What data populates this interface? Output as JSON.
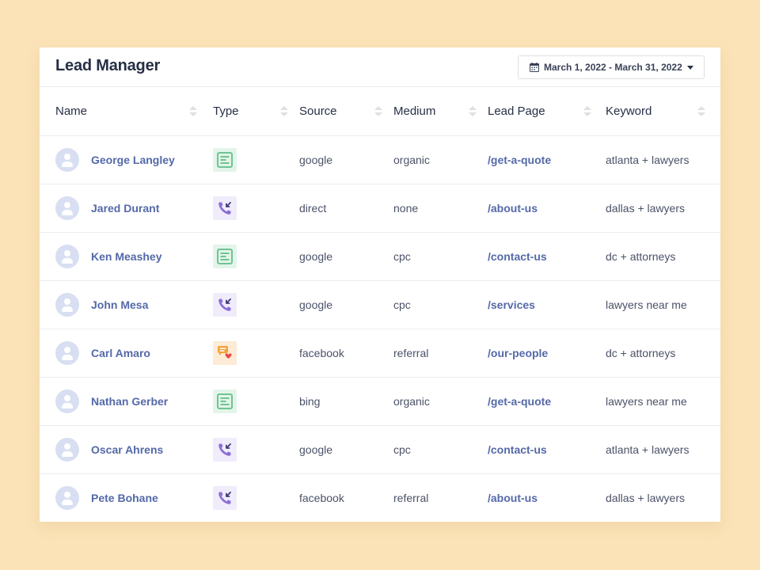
{
  "header": {
    "title": "Lead Manager",
    "date_range": "March 1, 2022 - March 31, 2022"
  },
  "columns": [
    "Name",
    "Type",
    "Source",
    "Medium",
    "Lead Page",
    "Keyword"
  ],
  "rows": [
    {
      "name": "George Langley",
      "type": "form-icon",
      "source": "google",
      "medium": "organic",
      "page": "/get-a-quote",
      "keyword": "atlanta + lawyers"
    },
    {
      "name": "Jared Durant",
      "type": "phone-call-icon",
      "source": "direct",
      "medium": "none",
      "page": "/about-us",
      "keyword": "dallas + lawyers"
    },
    {
      "name": "Ken Meashey",
      "type": "form-icon",
      "source": "google",
      "medium": "cpc",
      "page": "/contact-us",
      "keyword": "dc + attorneys"
    },
    {
      "name": "John Mesa",
      "type": "phone-call-icon",
      "source": "google",
      "medium": "cpc",
      "page": "/services",
      "keyword": "lawyers near me"
    },
    {
      "name": "Carl Amaro",
      "type": "chat-icon",
      "source": "facebook",
      "medium": "referral",
      "page": "/our-people",
      "keyword": "dc + attorneys"
    },
    {
      "name": "Nathan Gerber",
      "type": "form-icon",
      "source": "bing",
      "medium": "organic",
      "page": "/get-a-quote",
      "keyword": "lawyers near me"
    },
    {
      "name": "Oscar Ahrens",
      "type": "phone-call-icon",
      "source": "google",
      "medium": "cpc",
      "page": "/contact-us",
      "keyword": "atlanta + lawyers"
    },
    {
      "name": "Pete Bohane",
      "type": "phone-call-icon",
      "source": "facebook",
      "medium": "referral",
      "page": "/about-us",
      "keyword": "dallas + lawyers"
    }
  ],
  "colors": {
    "background": "#fbe3b7",
    "link": "#5469a8",
    "heading": "#262f45",
    "avatar": "#d9dff2",
    "form_icon": "#6fc491",
    "call_icon": "#8a6fd6",
    "chat_icon": "#f2a23a"
  }
}
